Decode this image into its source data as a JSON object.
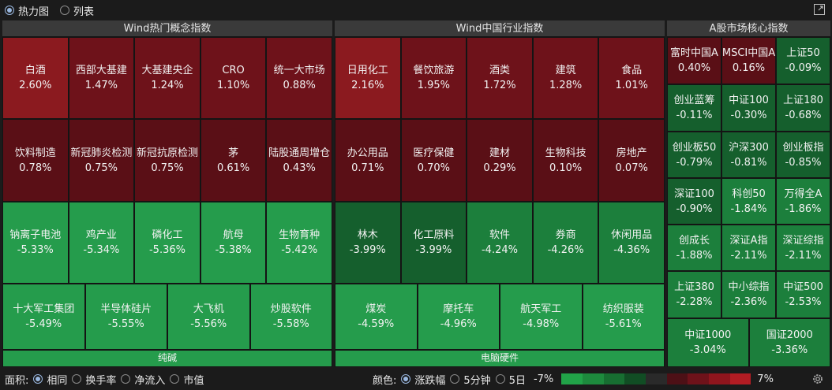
{
  "colors": {
    "red_strong": "#8b1a1f",
    "red_mid": "#6e121a",
    "red_dark": "#5a0f16",
    "green_light": "#259c4c",
    "green_mid": "#1c7f3c",
    "green_dark": "#155f2d",
    "scale": [
      "#21a348",
      "#1d8a3d",
      "#176e31",
      "#114d24",
      "#2a2a2a",
      "#4d1016",
      "#6e121a",
      "#8f151d",
      "#b21c23"
    ]
  },
  "view_toggle": {
    "options": [
      {
        "label": "热力图",
        "selected": true
      },
      {
        "label": "列表",
        "selected": false
      }
    ],
    "expand_icon": "expand-icon"
  },
  "panels": {
    "concept": {
      "title": "Wind热门概念指数",
      "rows": [
        [
          {
            "name": "白酒",
            "pct": "2.60%",
            "tone": "red_strong"
          },
          {
            "name": "西部大基建",
            "pct": "1.47%",
            "tone": "red_mid"
          },
          {
            "name": "大基建央企",
            "pct": "1.24%",
            "tone": "red_mid"
          },
          {
            "name": "CRO",
            "pct": "1.10%",
            "tone": "red_mid"
          },
          {
            "name": "统一大市场",
            "pct": "0.88%",
            "tone": "red_mid"
          }
        ],
        [
          {
            "name": "饮料制造",
            "pct": "0.78%",
            "tone": "red_dark"
          },
          {
            "name": "新冠肺炎检测",
            "pct": "0.75%",
            "tone": "red_dark"
          },
          {
            "name": "新冠抗原检测",
            "pct": "0.75%",
            "tone": "red_dark"
          },
          {
            "name": "茅",
            "pct": "0.61%",
            "tone": "red_dark"
          },
          {
            "name": "陆股通周增仓",
            "pct": "0.43%",
            "tone": "red_dark"
          }
        ],
        [
          {
            "name": "钠离子电池",
            "pct": "-5.33%",
            "tone": "green_light"
          },
          {
            "name": "鸡产业",
            "pct": "-5.34%",
            "tone": "green_light"
          },
          {
            "name": "磷化工",
            "pct": "-5.36%",
            "tone": "green_light"
          },
          {
            "name": "航母",
            "pct": "-5.38%",
            "tone": "green_light"
          },
          {
            "name": "生物育种",
            "pct": "-5.42%",
            "tone": "green_light"
          }
        ],
        [
          {
            "name": "十大军工集团",
            "pct": "-5.49%",
            "tone": "green_light"
          },
          {
            "name": "半导体硅片",
            "pct": "-5.55%",
            "tone": "green_light"
          },
          {
            "name": "大飞机",
            "pct": "-5.56%",
            "tone": "green_light"
          },
          {
            "name": "炒股软件",
            "pct": "-5.58%",
            "tone": "green_light"
          }
        ]
      ],
      "footer": "纯碱"
    },
    "industry": {
      "title": "Wind中国行业指数",
      "rows": [
        [
          {
            "name": "日用化工",
            "pct": "2.16%",
            "tone": "red_strong"
          },
          {
            "name": "餐饮旅游",
            "pct": "1.95%",
            "tone": "red_mid"
          },
          {
            "name": "酒类",
            "pct": "1.72%",
            "tone": "red_mid"
          },
          {
            "name": "建筑",
            "pct": "1.28%",
            "tone": "red_mid"
          },
          {
            "name": "食品",
            "pct": "1.01%",
            "tone": "red_mid"
          }
        ],
        [
          {
            "name": "办公用品",
            "pct": "0.71%",
            "tone": "red_dark"
          },
          {
            "name": "医疗保健",
            "pct": "0.70%",
            "tone": "red_dark"
          },
          {
            "name": "建材",
            "pct": "0.29%",
            "tone": "red_dark"
          },
          {
            "name": "生物科技",
            "pct": "0.10%",
            "tone": "red_dark"
          },
          {
            "name": "房地产",
            "pct": "0.07%",
            "tone": "red_dark"
          }
        ],
        [
          {
            "name": "林木",
            "pct": "-3.99%",
            "tone": "green_dark"
          },
          {
            "name": "化工原料",
            "pct": "-3.99%",
            "tone": "green_dark"
          },
          {
            "name": "软件",
            "pct": "-4.24%",
            "tone": "green_mid"
          },
          {
            "name": "券商",
            "pct": "-4.26%",
            "tone": "green_mid"
          },
          {
            "name": "休闲用品",
            "pct": "-4.36%",
            "tone": "green_mid"
          }
        ],
        [
          {
            "name": "煤炭",
            "pct": "-4.59%",
            "tone": "green_light"
          },
          {
            "name": "摩托车",
            "pct": "-4.96%",
            "tone": "green_light"
          },
          {
            "name": "航天军工",
            "pct": "-4.98%",
            "tone": "green_light"
          },
          {
            "name": "纺织服装",
            "pct": "-5.61%",
            "tone": "green_light"
          }
        ]
      ],
      "footer": "电脑硬件"
    },
    "core": {
      "title": "A股市场核心指数",
      "rows": [
        [
          {
            "name": "富时中国A",
            "pct": "0.40%",
            "tone": "red_dark"
          },
          {
            "name": "MSCI中国A",
            "pct": "0.16%",
            "tone": "red_dark"
          },
          {
            "name": "上证50",
            "pct": "-0.09%",
            "tone": "green_dark"
          }
        ],
        [
          {
            "name": "创业蓝筹",
            "pct": "-0.11%",
            "tone": "green_dark"
          },
          {
            "name": "中证100",
            "pct": "-0.30%",
            "tone": "green_dark"
          },
          {
            "name": "上证180",
            "pct": "-0.68%",
            "tone": "green_dark"
          }
        ],
        [
          {
            "name": "创业板50",
            "pct": "-0.79%",
            "tone": "green_dark"
          },
          {
            "name": "沪深300",
            "pct": "-0.81%",
            "tone": "green_dark"
          },
          {
            "name": "创业板指",
            "pct": "-0.85%",
            "tone": "green_dark"
          }
        ],
        [
          {
            "name": "深证100",
            "pct": "-0.90%",
            "tone": "green_dark"
          },
          {
            "name": "科创50",
            "pct": "-1.84%",
            "tone": "green_mid"
          },
          {
            "name": "万得全A",
            "pct": "-1.86%",
            "tone": "green_mid"
          }
        ],
        [
          {
            "name": "创成长",
            "pct": "-1.88%",
            "tone": "green_mid"
          },
          {
            "name": "深证A指",
            "pct": "-2.11%",
            "tone": "green_mid"
          },
          {
            "name": "深证综指",
            "pct": "-2.11%",
            "tone": "green_mid"
          }
        ],
        [
          {
            "name": "上证380",
            "pct": "-2.28%",
            "tone": "green_mid"
          },
          {
            "name": "中小综指",
            "pct": "-2.36%",
            "tone": "green_mid"
          },
          {
            "name": "中证500",
            "pct": "-2.53%",
            "tone": "green_mid"
          }
        ],
        [
          {
            "name": "中证1000",
            "pct": "-3.04%",
            "tone": "green_mid"
          },
          {
            "name": "国证2000",
            "pct": "-3.36%",
            "tone": "green_mid"
          }
        ]
      ]
    }
  },
  "bottom": {
    "area_label": "面积:",
    "area_options": [
      {
        "label": "相同",
        "selected": true
      },
      {
        "label": "换手率",
        "selected": false
      },
      {
        "label": "净流入",
        "selected": false
      },
      {
        "label": "市值",
        "selected": false
      }
    ],
    "color_label": "颜色:",
    "color_options": [
      {
        "label": "涨跌幅",
        "selected": true
      },
      {
        "label": "5分钟",
        "selected": false
      },
      {
        "label": "5日",
        "selected": false
      }
    ],
    "scale_min": "-7%",
    "scale_max": "7%",
    "settings_icon": "gear-icon"
  }
}
